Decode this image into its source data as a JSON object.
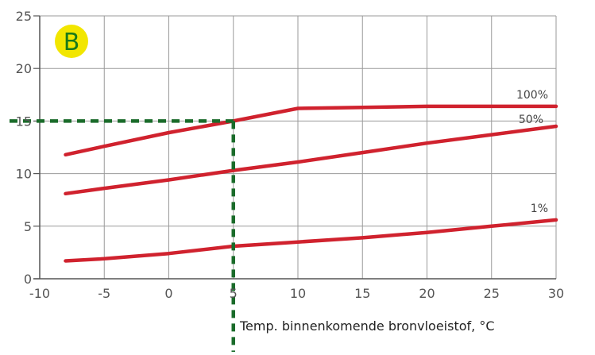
{
  "chart_data": {
    "type": "line",
    "title": "",
    "xlabel": "Temp. binnenkomende bronvloeistof, °C",
    "ylabel": "",
    "xlim": [
      -10,
      30
    ],
    "ylim": [
      0,
      25
    ],
    "x_ticks": [
      "-10",
      "-5",
      "0",
      "5",
      "10",
      "15",
      "20",
      "25",
      "30"
    ],
    "y_ticks": [
      "0",
      "5",
      "10",
      "15",
      "20",
      "25"
    ],
    "grid": true,
    "series": [
      {
        "name": "100%",
        "color": "#d0222e",
        "points": [
          [
            -8,
            11.8
          ],
          [
            -5,
            12.6
          ],
          [
            0,
            13.9
          ],
          [
            5,
            15.0
          ],
          [
            10,
            16.2
          ],
          [
            15,
            16.3
          ],
          [
            20,
            16.4
          ],
          [
            25,
            16.4
          ],
          [
            30,
            16.4
          ]
        ]
      },
      {
        "name": "50%",
        "color": "#d0222e",
        "points": [
          [
            -8,
            8.1
          ],
          [
            -5,
            8.6
          ],
          [
            0,
            9.4
          ],
          [
            5,
            10.3
          ],
          [
            10,
            11.1
          ],
          [
            15,
            12.0
          ],
          [
            20,
            12.9
          ],
          [
            25,
            13.7
          ],
          [
            30,
            14.5
          ]
        ]
      },
      {
        "name": "1%",
        "color": "#d0222e",
        "points": [
          [
            -8,
            1.7
          ],
          [
            -5,
            1.9
          ],
          [
            0,
            2.4
          ],
          [
            5,
            3.1
          ],
          [
            10,
            3.5
          ],
          [
            15,
            3.9
          ],
          [
            20,
            4.4
          ],
          [
            25,
            5.0
          ],
          [
            30,
            5.6
          ]
        ]
      }
    ],
    "reference_lines": [
      {
        "type": "horizontal",
        "y": 15,
        "x_from": -10,
        "x_to": 5,
        "color": "#1a6b2a",
        "style": "dashed"
      },
      {
        "type": "vertical",
        "x": 5,
        "color": "#1a6b2a",
        "style": "dashed"
      }
    ],
    "badge": {
      "text": "B",
      "fill": "#f2e600",
      "text_color": "#1a7a1a"
    }
  }
}
